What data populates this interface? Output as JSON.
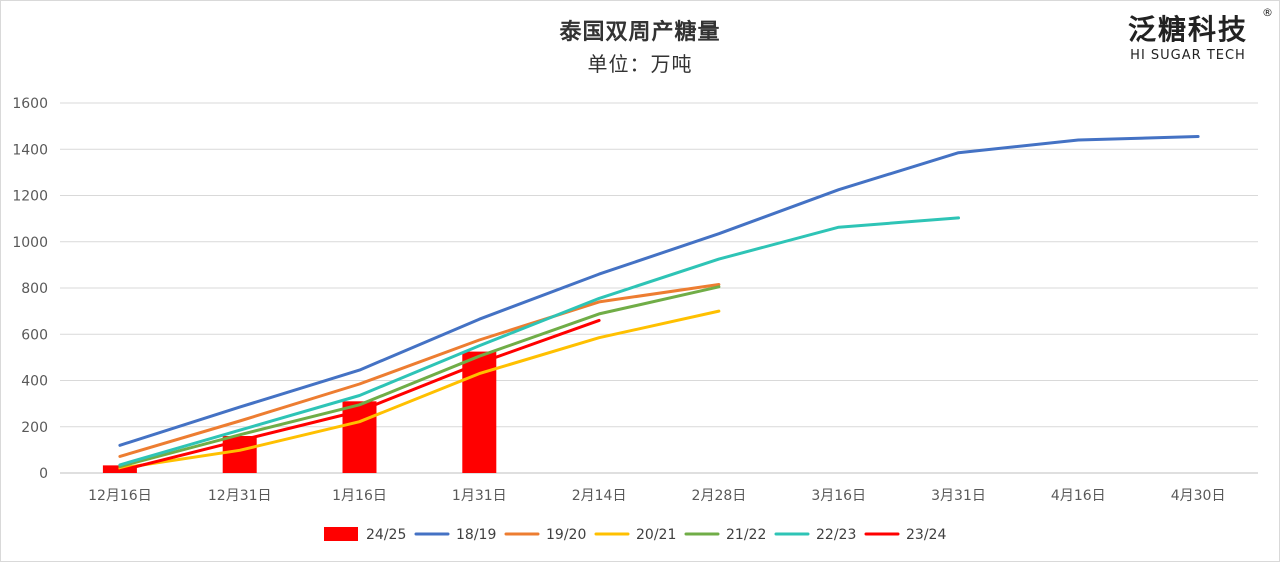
{
  "header": {
    "title": "泰国双周产糖量",
    "subtitle": "单位：万吨"
  },
  "logo": {
    "main": "泛糖科技",
    "sub": "HI SUGAR TECH",
    "reg": "®"
  },
  "chart_data": {
    "type": "line",
    "title": "泰国双周产糖量",
    "subtitle": "单位：万吨",
    "categories": [
      "12月16日",
      "12月31日",
      "1月16日",
      "1月31日",
      "2月14日",
      "2月28日",
      "3月16日",
      "3月31日",
      "4月16日",
      "4月30日"
    ],
    "ylim": [
      0,
      1600
    ],
    "yticks": [
      0,
      200,
      400,
      600,
      800,
      1000,
      1200,
      1400,
      1600
    ],
    "grid": true,
    "legend_position": "bottom",
    "bar_series": {
      "name": "24/25",
      "color": "#FF0000",
      "values": [
        33,
        160,
        310,
        525,
        null,
        null,
        null,
        null,
        null,
        null
      ]
    },
    "series": [
      {
        "name": "18/19",
        "color": "#4472C4",
        "values": [
          120,
          285,
          445,
          665,
          860,
          1035,
          1225,
          1385,
          1440,
          1455
        ]
      },
      {
        "name": "19/20",
        "color": "#ED7D31",
        "values": [
          72,
          225,
          385,
          575,
          740,
          815,
          null,
          null,
          null,
          null
        ]
      },
      {
        "name": "20/21",
        "color": "#FFC000",
        "values": [
          20,
          98,
          222,
          430,
          585,
          700,
          null,
          null,
          null,
          null
        ]
      },
      {
        "name": "21/22",
        "color": "#70AD47",
        "values": [
          28,
          165,
          295,
          505,
          688,
          805,
          null,
          null,
          null,
          null
        ]
      },
      {
        "name": "22/23",
        "color": "#2EC4B6",
        "values": [
          35,
          185,
          335,
          550,
          755,
          925,
          1063,
          1103,
          null,
          null
        ]
      },
      {
        "name": "23/24",
        "color": "#FF0000",
        "values": [
          10,
          140,
          268,
          475,
          660,
          null,
          null,
          null,
          null,
          null
        ]
      }
    ]
  }
}
